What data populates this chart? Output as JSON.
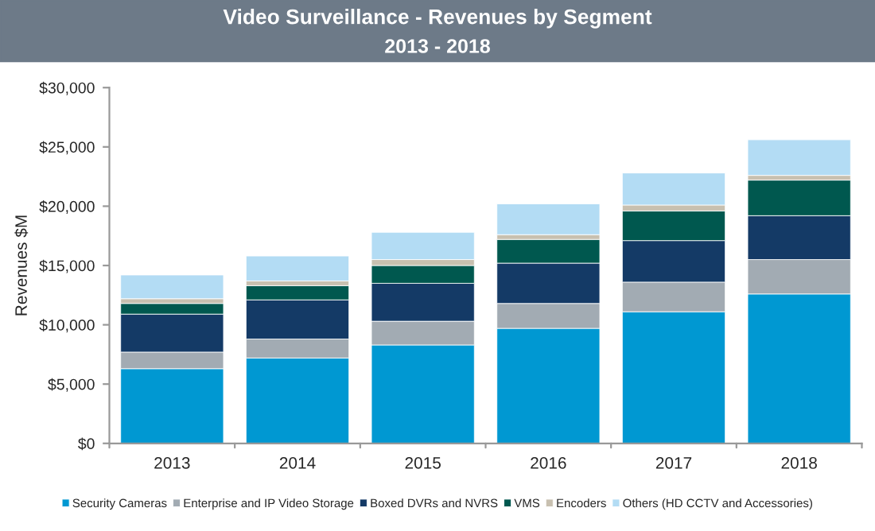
{
  "chart_data": {
    "type": "bar",
    "stacked": true,
    "title": "Video Surveillance - Revenues by Segment",
    "subtitle": "2013 - 2018",
    "ylabel": "Revenues $M",
    "categories": [
      "2013",
      "2014",
      "2015",
      "2016",
      "2017",
      "2018"
    ],
    "series": [
      {
        "name": "Security Cameras",
        "color": "#0098d2",
        "values": [
          6300,
          7200,
          8300,
          9700,
          11100,
          12600
        ]
      },
      {
        "name": "Enterprise and IP Video Storage",
        "color": "#a2abb3",
        "values": [
          1400,
          1600,
          2000,
          2100,
          2500,
          2900
        ]
      },
      {
        "name": "Boxed DVRs and NVRS",
        "color": "#143a66",
        "values": [
          3200,
          3300,
          3200,
          3400,
          3500,
          3700
        ]
      },
      {
        "name": "VMS",
        "color": "#00584f",
        "values": [
          900,
          1200,
          1500,
          2000,
          2500,
          3000
        ]
      },
      {
        "name": "Encoders",
        "color": "#c8c0b0",
        "values": [
          400,
          400,
          500,
          400,
          500,
          400
        ]
      },
      {
        "name": "Others (HD CCTV and Accessories)",
        "color": "#b3dcf4",
        "values": [
          2000,
          2100,
          2300,
          2600,
          2700,
          3000
        ]
      }
    ],
    "ylim": [
      0,
      30000
    ],
    "yticks": [
      {
        "value": 0,
        "label": "$0"
      },
      {
        "value": 5000,
        "label": "$5,000"
      },
      {
        "value": 10000,
        "label": "$10,000"
      },
      {
        "value": 15000,
        "label": "$15,000"
      },
      {
        "value": 20000,
        "label": "$20,000"
      },
      {
        "value": 25000,
        "label": "$25,000"
      },
      {
        "value": 30000,
        "label": "$30,000"
      }
    ],
    "grid": false,
    "legend": "bottom"
  }
}
